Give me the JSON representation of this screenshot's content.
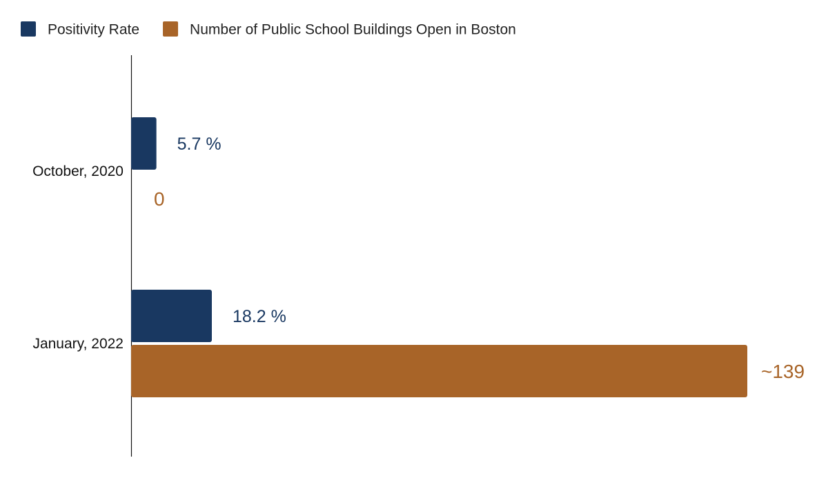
{
  "chart_data": {
    "type": "bar",
    "orientation": "horizontal",
    "categories": [
      "October, 2020",
      "January, 2022"
    ],
    "series": [
      {
        "name": "Positivity Rate",
        "color": "#193861",
        "values": [
          5.7,
          18.2
        ],
        "labels": [
          "5.7 %",
          "18.2 %"
        ]
      },
      {
        "name": "Number of Public School Buildings Open in Boston",
        "color": "#a86428",
        "values": [
          0,
          139
        ],
        "labels": [
          "0",
          "~139"
        ]
      }
    ],
    "title": "",
    "xlabel": "",
    "ylabel": "",
    "legend": "top-left",
    "grid": false
  }
}
